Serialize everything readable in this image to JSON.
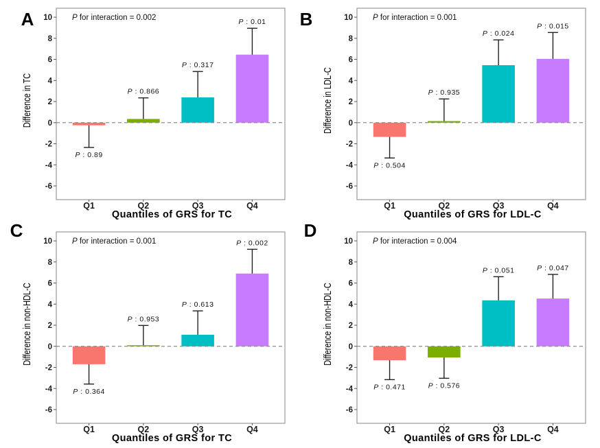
{
  "chart_data": [
    {
      "panel": "A",
      "type": "bar",
      "title": "",
      "annotation": {
        "p_symbol": "P",
        "text": " for interaction = 0.002"
      },
      "categories": [
        "Q1",
        "Q2",
        "Q3",
        "Q4"
      ],
      "values": [
        -0.25,
        0.35,
        2.4,
        6.45
      ],
      "error_ends": [
        -2.35,
        2.35,
        4.85,
        8.95
      ],
      "p_labels": [
        "0.89",
        "0.866",
        "0.317",
        "0.01"
      ],
      "colors": [
        "#F8766D",
        "#7CAE00",
        "#00BFC4",
        "#C77CFF"
      ],
      "xlabel": "Quantiles of GRS for TC",
      "ylabel": "Difference in TC",
      "ylim": [
        -7.3,
        10.85
      ],
      "yticks": [
        -6,
        -4,
        -2,
        0,
        2,
        4,
        6,
        8,
        10
      ],
      "reference_line": 0,
      "grid": false
    },
    {
      "panel": "B",
      "type": "bar",
      "title": "",
      "annotation": {
        "p_symbol": "P",
        "text": " for interaction = 0.001"
      },
      "categories": [
        "Q1",
        "Q2",
        "Q3",
        "Q4"
      ],
      "values": [
        -1.35,
        0.15,
        5.45,
        6.05
      ],
      "error_ends": [
        -3.35,
        2.25,
        7.85,
        8.55
      ],
      "p_labels": [
        "0.504",
        "0.935",
        "0.024",
        "0.015"
      ],
      "colors": [
        "#F8766D",
        "#7CAE00",
        "#00BFC4",
        "#C77CFF"
      ],
      "xlabel": "Quantiles of GRS for LDL-C",
      "ylabel": "Difference in LDL-C",
      "ylim": [
        -7.3,
        10.85
      ],
      "yticks": [
        -6,
        -4,
        -2,
        0,
        2,
        4,
        6,
        8,
        10
      ],
      "reference_line": 0,
      "grid": false
    },
    {
      "panel": "C",
      "type": "bar",
      "title": "",
      "annotation": {
        "p_symbol": "P",
        "text": " for interaction = 0.001"
      },
      "categories": [
        "Q1",
        "Q2",
        "Q3",
        "Q4"
      ],
      "values": [
        -1.7,
        0.1,
        1.1,
        6.9
      ],
      "error_ends": [
        -3.58,
        1.98,
        3.36,
        9.2
      ],
      "p_labels": [
        "0.364",
        "0.953",
        "0.613",
        "0.002"
      ],
      "colors": [
        "#F8766D",
        "#7CAE00",
        "#00BFC4",
        "#C77CFF"
      ],
      "xlabel": "Quantiles of GRS for TC",
      "ylabel": "Difference in non-HDL-C",
      "ylim": [
        -7.3,
        10.85
      ],
      "yticks": [
        -6,
        -4,
        -2,
        0,
        2,
        4,
        6,
        8,
        10
      ],
      "reference_line": 0,
      "grid": false
    },
    {
      "panel": "D",
      "type": "bar",
      "title": "",
      "annotation": {
        "p_symbol": "P",
        "text": " for interaction = 0.004"
      },
      "categories": [
        "Q1",
        "Q2",
        "Q3",
        "Q4"
      ],
      "values": [
        -1.32,
        -1.06,
        4.36,
        4.53
      ],
      "error_ends": [
        -3.16,
        -3.03,
        6.6,
        6.82
      ],
      "p_labels": [
        "0.471",
        "0.576",
        "0.051",
        "0.047"
      ],
      "colors": [
        "#F8766D",
        "#7CAE00",
        "#00BFC4",
        "#C77CFF"
      ],
      "xlabel": "Quantiles of GRS for LDL-C",
      "ylabel": "Difference in non-HDL-C",
      "ylim": [
        -7.3,
        10.85
      ],
      "yticks": [
        -6,
        -4,
        -2,
        0,
        2,
        4,
        6,
        8,
        10
      ],
      "reference_line": 0,
      "grid": false
    }
  ],
  "p_label_prefix": "P",
  "p_label_separator": " : "
}
